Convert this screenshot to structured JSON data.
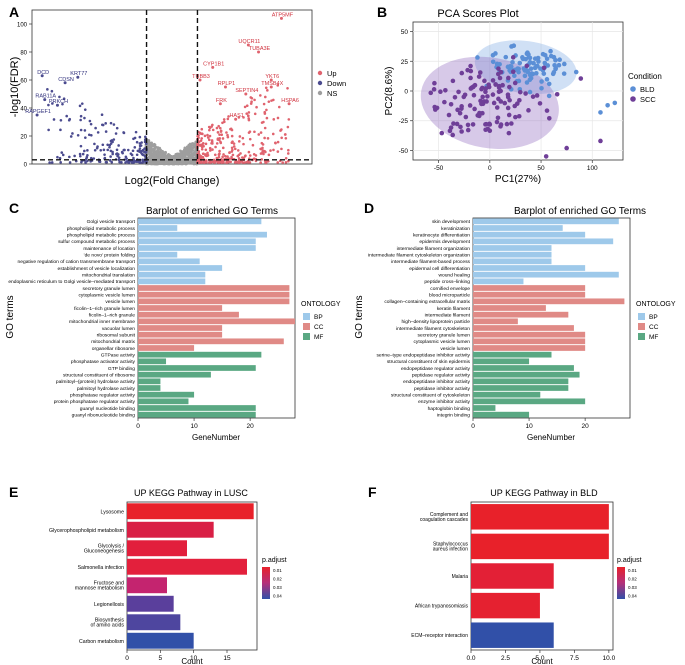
{
  "figure": {
    "panel_letters": [
      "A",
      "B",
      "C",
      "D",
      "E",
      "F"
    ]
  },
  "chart_data": [
    {
      "id": "A",
      "type": "scatter",
      "title": "",
      "xlabel": "Log2(Fold Change)",
      "ylabel": "-log10(FDR)",
      "xlim": [
        -5.5,
        5.5
      ],
      "ylim": [
        0,
        110
      ],
      "yticks": [
        0,
        20,
        40,
        60,
        80,
        100
      ],
      "thresholds": {
        "x": [
          -1,
          1
        ],
        "y": 3
      },
      "legend": {
        "position": "right",
        "items": [
          {
            "label": "Up",
            "color": "#e0636e"
          },
          {
            "label": "Down",
            "color": "#4b4b8f"
          },
          {
            "label": "NS",
            "color": "#9e9e9e"
          }
        ]
      },
      "labels": [
        {
          "text": "ATP5MF",
          "x": 4.3,
          "y": 104,
          "group": "up"
        },
        {
          "text": "UQCR11",
          "x": 3.0,
          "y": 85,
          "group": "up"
        },
        {
          "text": "TUBA3E",
          "x": 3.4,
          "y": 80,
          "group": "up"
        },
        {
          "text": "CYP1B1",
          "x": 1.6,
          "y": 69,
          "group": "up"
        },
        {
          "text": "YKT6",
          "x": 3.9,
          "y": 60,
          "group": "up"
        },
        {
          "text": "TUBB3",
          "x": 1.1,
          "y": 60,
          "group": "up"
        },
        {
          "text": "RPLP1",
          "x": 2.1,
          "y": 55,
          "group": "up"
        },
        {
          "text": "TMSB4X",
          "x": 3.9,
          "y": 55,
          "group": "up"
        },
        {
          "text": "SEPTIN4",
          "x": 2.9,
          "y": 50,
          "group": "up"
        },
        {
          "text": "HSPA6",
          "x": 4.6,
          "y": 43,
          "group": "up"
        },
        {
          "text": "FRK",
          "x": 1.9,
          "y": 43,
          "group": "up"
        },
        {
          "text": "HAS1",
          "x": 2.5,
          "y": 32,
          "group": "up"
        },
        {
          "text": "DCD",
          "x": -5.1,
          "y": 63,
          "group": "down"
        },
        {
          "text": "KRT77",
          "x": -3.7,
          "y": 62,
          "group": "down"
        },
        {
          "text": "CDSN",
          "x": -4.2,
          "y": 58,
          "group": "down"
        },
        {
          "text": "RAB11A",
          "x": -5.0,
          "y": 46,
          "group": "down"
        },
        {
          "text": "PRKCH",
          "x": -4.5,
          "y": 42,
          "group": "down"
        },
        {
          "text": "RAPGEF1",
          "x": -5.3,
          "y": 35,
          "group": "down"
        }
      ]
    },
    {
      "id": "B",
      "type": "scatter",
      "title": "PCA Scores Plot",
      "xlabel": "PC1(27%)",
      "ylabel": "PC2(8.6%)",
      "xlim": [
        -75,
        130
      ],
      "ylim": [
        -58,
        58
      ],
      "xticks": [
        -50,
        0,
        50,
        100
      ],
      "yticks": [
        -50,
        -25,
        0,
        25,
        50
      ],
      "legend": {
        "position": "right",
        "title": "Condition",
        "items": [
          {
            "label": "BLD",
            "color": "#5b8fd6"
          },
          {
            "label": "SCC",
            "color": "#6f3f98"
          }
        ]
      }
    },
    {
      "id": "C",
      "type": "bar",
      "title": "Barplot of enriched GO Terms",
      "xlabel": "GeneNumber",
      "ylabel": "GO terms",
      "xlim": [
        0,
        28
      ],
      "xticks": [
        0,
        10,
        20
      ],
      "legend": {
        "position": "right",
        "title": "ONTOLOGY",
        "items": [
          {
            "label": "BP",
            "color": "#9ec9ea"
          },
          {
            "label": "CC",
            "color": "#e08a86"
          },
          {
            "label": "MF",
            "color": "#5aa883"
          }
        ]
      },
      "categories": [
        "Golgi vesicle transport",
        "phospholipid metabolic process",
        "phospholipid metabolic process",
        "sulfur compound metabolic process",
        "maintenance of location",
        "'de novo' protein folding",
        "negative regulation of cation transmembrane transport",
        "establishment of vesicle localization",
        "mitochondrial translation",
        "endoplasmic reticulum to Golgi vesicle–mediated transport",
        "secretory granule lumen",
        "cytoplasmic vesicle lumen",
        "vesicle lumen",
        "ficolin–1–rich granule lumen",
        "ficolin–1–rich granule",
        "mitochondrial inner membrane",
        "vacuolar lumen",
        "ribosomal subunit",
        "mitochondrial matrix",
        "organellar ribosome",
        "GTPase activity",
        "phosphatase activator activity",
        "GTP binding",
        "structural constituent of ribosome",
        "palmitoyl–(protein) hydrolase activity",
        "palmitoyl hydrolase activity",
        "phosphatase regulator activity",
        "protein phosphatase regulator activity",
        "guanyl nucleotide binding",
        "guanyl ribonucleotide binding"
      ],
      "ontology": [
        "BP",
        "BP",
        "BP",
        "BP",
        "BP",
        "BP",
        "BP",
        "BP",
        "BP",
        "BP",
        "CC",
        "CC",
        "CC",
        "CC",
        "CC",
        "CC",
        "CC",
        "CC",
        "CC",
        "CC",
        "MF",
        "MF",
        "MF",
        "MF",
        "MF",
        "MF",
        "MF",
        "MF",
        "MF",
        "MF"
      ],
      "values": [
        22,
        7,
        23,
        21,
        21,
        7,
        11,
        15,
        12,
        12,
        27,
        27,
        27,
        15,
        18,
        28,
        15,
        15,
        26,
        10,
        22,
        5,
        21,
        13,
        4,
        4,
        10,
        9,
        21,
        21
      ]
    },
    {
      "id": "D",
      "type": "bar",
      "title": "Barplot of enriched GO Terms",
      "xlabel": "GeneNumber",
      "ylabel": "GO terms",
      "xlim": [
        0,
        28
      ],
      "xticks": [
        0,
        10,
        20
      ],
      "legend": {
        "position": "right",
        "title": "ONTOLOGY",
        "items": [
          {
            "label": "BP",
            "color": "#9ec9ea"
          },
          {
            "label": "CC",
            "color": "#e08a86"
          },
          {
            "label": "MF",
            "color": "#5aa883"
          }
        ]
      },
      "categories": [
        "skin development",
        "keratinization",
        "keratinocyte differentiation",
        "epidermis development",
        "intermediate filament organization",
        "intermediate filament cytoskeleton organization",
        "intermediate filament-based process",
        "epidermal cell differentiation",
        "wound healing",
        "peptide cross–linking",
        "cornified envelope",
        "blood microparticle",
        "collagen–containing extracellular matrix",
        "keratin filament",
        "intermediate filament",
        "high–density lipoprotein particle",
        "intermediate filament cytoskeleton",
        "secretory granule lumen",
        "cytoplasmic vesicle lumen",
        "vesicle lumen",
        "serine–type endopeptidase inhibitor activity",
        "structural constituent of skin epidermis",
        "endopeptidase regulator activity",
        "peptidase regulator activity",
        "endopeptidase inhibitor activity",
        "peptidase inhibitor activity",
        "structural constituent of cytoskeleton",
        "enzyme inhibitor activity",
        "haptoglobin binding",
        "integrin binding"
      ],
      "ontology": [
        "BP",
        "BP",
        "BP",
        "BP",
        "BP",
        "BP",
        "BP",
        "BP",
        "BP",
        "BP",
        "CC",
        "CC",
        "CC",
        "CC",
        "CC",
        "CC",
        "CC",
        "CC",
        "CC",
        "CC",
        "MF",
        "MF",
        "MF",
        "MF",
        "MF",
        "MF",
        "MF",
        "MF",
        "MF",
        "MF"
      ],
      "values": [
        26,
        16,
        20,
        25,
        14,
        14,
        14,
        20,
        26,
        9,
        20,
        20,
        27,
        13,
        17,
        8,
        18,
        20,
        20,
        20,
        14,
        10,
        18,
        19,
        17,
        17,
        12,
        20,
        4,
        10
      ]
    },
    {
      "id": "E",
      "type": "bar",
      "title": "UP KEGG Pathway in LUSC",
      "xlabel": "Count",
      "ylabel": "",
      "xlim": [
        0,
        19.5
      ],
      "xticks": [
        0,
        5,
        10,
        15
      ],
      "color_legend": {
        "title": "p.adjust",
        "ticks": [
          "0.01",
          "0.02",
          "0.03",
          "0.04"
        ],
        "low_color": "#e8212a",
        "high_color": "#3150a8"
      },
      "categories": [
        "Lysosome",
        "Glycerophospholipid metabolism",
        "Glycolysis / Gluconeogenesis",
        "Salmonella infection",
        "Fructose and mannose metabolism",
        "Legionellosis",
        "Biosynthesis of amino acids",
        "Carbon metabolism"
      ],
      "values": [
        19,
        13,
        9,
        18,
        6,
        7,
        8,
        10
      ],
      "colors": [
        "#e8212a",
        "#d91f45",
        "#e21f3c",
        "#e3203c",
        "#c4246f",
        "#5a3f9c",
        "#4e469f",
        "#3150a8"
      ]
    },
    {
      "id": "F",
      "type": "bar",
      "title": "UP KEGG Pathway in BLD",
      "xlabel": "Count",
      "ylabel": "",
      "xlim": [
        0,
        10.3
      ],
      "xticks": [
        0.0,
        2.5,
        5.0,
        7.5,
        10.0
      ],
      "color_legend": {
        "title": "p.adjust",
        "ticks": [
          "0.01",
          "0.02",
          "0.03",
          "0.04"
        ],
        "low_color": "#e8212a",
        "high_color": "#3150a8"
      },
      "categories": [
        "Complement and coagulation cascades",
        "Staphylococcus aureus infection",
        "Malaria",
        "African trypanosomiasis",
        "ECM–receptor interaction"
      ],
      "values": [
        10,
        10,
        6,
        5,
        6
      ],
      "colors": [
        "#e8212a",
        "#e8212a",
        "#e32036",
        "#e52130",
        "#3150a8"
      ]
    }
  ]
}
